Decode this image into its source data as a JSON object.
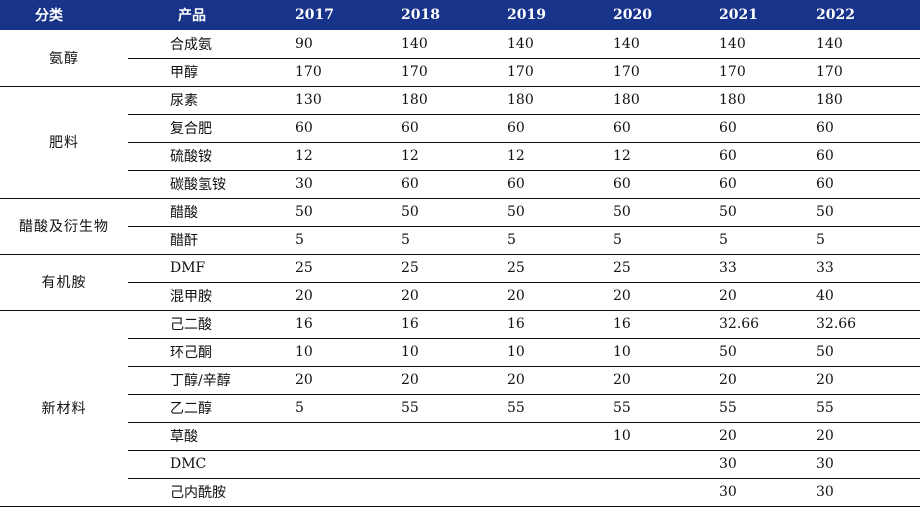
{
  "headers": {
    "category": "分类",
    "product": "产品",
    "years": [
      "2017",
      "2018",
      "2019",
      "2020",
      "2021",
      "2022"
    ]
  },
  "groups": [
    {
      "category": "氨醇",
      "rows": [
        {
          "product": "合成氨",
          "values": [
            "90",
            "140",
            "140",
            "140",
            "140",
            "140"
          ]
        },
        {
          "product": "甲醇",
          "values": [
            "170",
            "170",
            "170",
            "170",
            "170",
            "170"
          ]
        }
      ]
    },
    {
      "category": "肥料",
      "rows": [
        {
          "product": "尿素",
          "values": [
            "130",
            "180",
            "180",
            "180",
            "180",
            "180"
          ]
        },
        {
          "product": "复合肥",
          "values": [
            "60",
            "60",
            "60",
            "60",
            "60",
            "60"
          ]
        },
        {
          "product": "硫酸铵",
          "values": [
            "12",
            "12",
            "12",
            "12",
            "60",
            "60"
          ]
        },
        {
          "product": "碳酸氢铵",
          "values": [
            "30",
            "60",
            "60",
            "60",
            "60",
            "60"
          ]
        }
      ]
    },
    {
      "category": "醋酸及衍生物",
      "rows": [
        {
          "product": "醋酸",
          "values": [
            "50",
            "50",
            "50",
            "50",
            "50",
            "50"
          ]
        },
        {
          "product": "醋酐",
          "values": [
            "5",
            "5",
            "5",
            "5",
            "5",
            "5"
          ]
        }
      ]
    },
    {
      "category": "有机胺",
      "rows": [
        {
          "product": "DMF",
          "values": [
            "25",
            "25",
            "25",
            "25",
            "33",
            "33"
          ]
        },
        {
          "product": "混甲胺",
          "values": [
            "20",
            "20",
            "20",
            "20",
            "20",
            "40"
          ]
        }
      ]
    },
    {
      "category": "新材料",
      "rows": [
        {
          "product": "己二酸",
          "values": [
            "16",
            "16",
            "16",
            "16",
            "32.66",
            "32.66"
          ]
        },
        {
          "product": "环己酮",
          "values": [
            "10",
            "10",
            "10",
            "10",
            "50",
            "50"
          ]
        },
        {
          "product": "丁醇/辛醇",
          "values": [
            "20",
            "20",
            "20",
            "20",
            "20",
            "20"
          ]
        },
        {
          "product": "乙二醇",
          "values": [
            "5",
            "55",
            "55",
            "55",
            "55",
            "55"
          ]
        },
        {
          "product": "草酸",
          "values": [
            "",
            "",
            "",
            "10",
            "20",
            "20"
          ]
        },
        {
          "product": "DMC",
          "values": [
            "",
            "",
            "",
            "",
            "30",
            "30"
          ]
        },
        {
          "product": "己内酰胺",
          "values": [
            "",
            "",
            "",
            "",
            "30",
            "30"
          ]
        }
      ]
    }
  ]
}
